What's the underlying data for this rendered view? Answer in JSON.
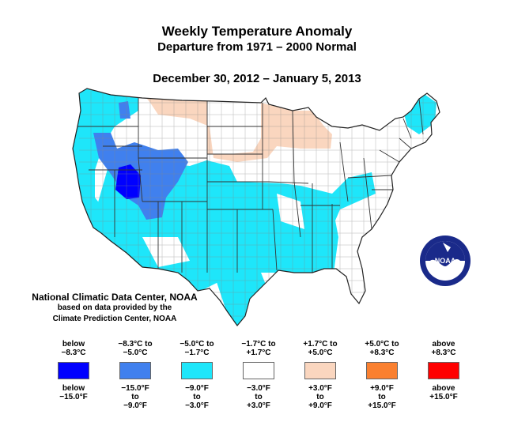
{
  "title": "Weekly Temperature Anomaly",
  "subtitle": "Departure from 1971 – 2000 Normal",
  "date_range": "December 30, 2012 – January 5, 2013",
  "credit": {
    "line1": "National Climatic Data Center, NOAA",
    "line2": "based on data provided by the",
    "line3": "Climate Prediction Center, NOAA"
  },
  "logo_text": "NOAA",
  "legend": [
    {
      "celsius": "below\n−8.3°C",
      "fahrenheit": "below\n−15.0°F",
      "color": "#0000ff"
    },
    {
      "celsius": "−8.3°C to\n−5.0°C",
      "fahrenheit": "−15.0°F\nto\n−9.0°F",
      "color": "#4080ee"
    },
    {
      "celsius": "−5.0°C to\n−1.7°C",
      "fahrenheit": "−9.0°F\nto\n−3.0°F",
      "color": "#1ee6fa"
    },
    {
      "celsius": "−1.7°C to\n+1.7°C",
      "fahrenheit": "−3.0°F\nto\n+3.0°F",
      "color": "#ffffff"
    },
    {
      "celsius": "+1.7°C to\n+5.0°C",
      "fahrenheit": "+3.0°F\nto\n+9.0°F",
      "color": "#fad6bf"
    },
    {
      "celsius": "+5.0°C to\n+8.3°C",
      "fahrenheit": "+9.0°F\nto\n+15.0°F",
      "color": "#fa8030"
    },
    {
      "celsius": "above\n+8.3°C",
      "fahrenheit": "above\n+15.0°F",
      "color": "#ff0000"
    }
  ],
  "colors": {
    "cyan": "#1ee6fa",
    "blue": "#4080ee",
    "deep_blue": "#0000ff",
    "peach": "#fad6bf",
    "border": "#777777"
  }
}
